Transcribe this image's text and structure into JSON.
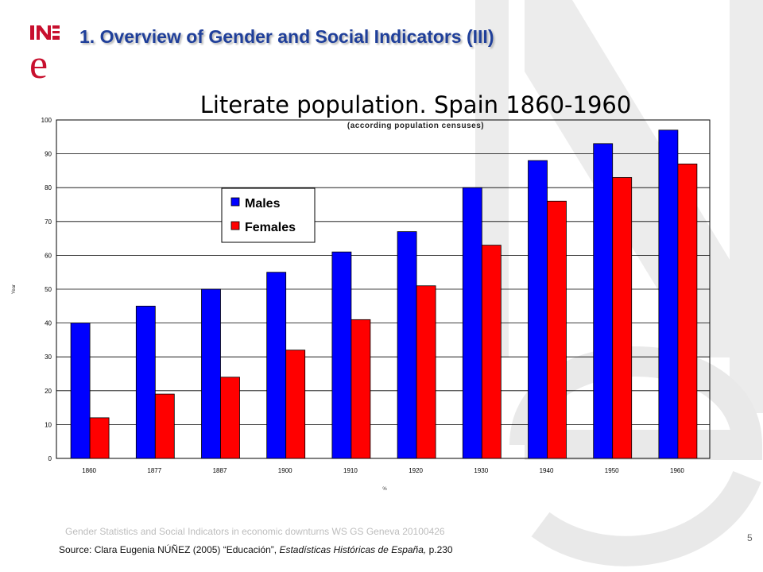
{
  "slide": {
    "title": "1. Overview of Gender and Social Indicators (III)",
    "footer_note": "Gender Statistics and Social Indicators in economic downturns WS GS Geneva 20100426",
    "source_prefix": "Source: Clara Eugenia NÚÑEZ (2005) “Educación”, ",
    "source_italic": "Estadísticas Históricas de España,",
    "source_suffix": " p.230",
    "page_number": "5",
    "logo_text": "INE",
    "colors": {
      "title": "#1f3f9a",
      "logo": "#c8102e",
      "watermark": "#e6e6e6"
    }
  },
  "chart_data": {
    "type": "bar",
    "title": "Literate population. Spain 1860-1960",
    "subtitle": "(according population censuses)",
    "xlabel": "%",
    "ylabel": "Year",
    "categories": [
      "1860",
      "1877",
      "1887",
      "1900",
      "1910",
      "1920",
      "1930",
      "1940",
      "1950",
      "1960"
    ],
    "series": [
      {
        "name": "Males",
        "color": "#0000ff",
        "values": [
          40,
          45,
          50,
          55,
          61,
          67,
          80,
          88,
          93,
          97
        ]
      },
      {
        "name": "Females",
        "color": "#ff0000",
        "values": [
          12,
          19,
          24,
          32,
          41,
          51,
          63,
          76,
          83,
          87
        ]
      }
    ],
    "ylim": [
      0,
      100
    ],
    "yticks": [
      0,
      10,
      20,
      30,
      40,
      50,
      60,
      70,
      80,
      90,
      100
    ],
    "grid": true,
    "legend_position": "upper-left"
  }
}
